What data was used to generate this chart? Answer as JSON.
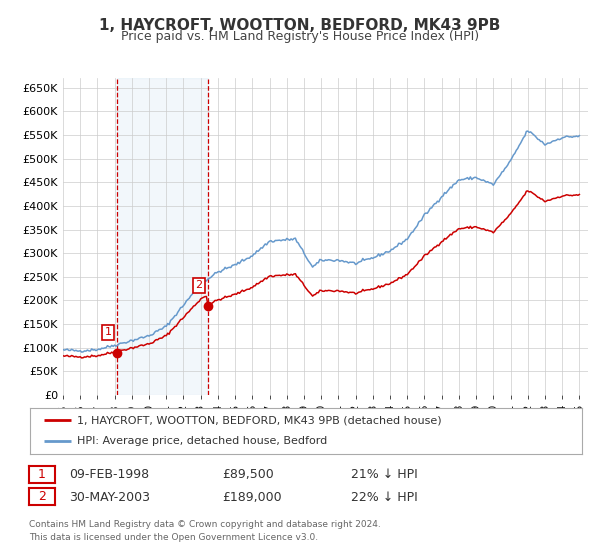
{
  "title": "1, HAYCROFT, WOOTTON, BEDFORD, MK43 9PB",
  "subtitle": "Price paid vs. HM Land Registry's House Price Index (HPI)",
  "legend_label_red": "1, HAYCROFT, WOOTTON, BEDFORD, MK43 9PB (detached house)",
  "legend_label_blue": "HPI: Average price, detached house, Bedford",
  "sale1_date": "09-FEB-1998",
  "sale1_price": "£89,500",
  "sale1_hpi": "21% ↓ HPI",
  "sale1_year": 1998.12,
  "sale1_value": 89500,
  "sale2_date": "30-MAY-2003",
  "sale2_price": "£189,000",
  "sale2_hpi": "22% ↓ HPI",
  "sale2_year": 2003.41,
  "sale2_value": 189000,
  "color_red": "#cc0000",
  "color_blue": "#6699cc",
  "color_vline": "#cc0000",
  "color_shade": "#cce0f0",
  "ylim": [
    0,
    670000
  ],
  "yticks": [
    0,
    50000,
    100000,
    150000,
    200000,
    250000,
    300000,
    350000,
    400000,
    450000,
    500000,
    550000,
    600000,
    650000
  ],
  "xlim_start": 1995.0,
  "xlim_end": 2025.5,
  "footer_line1": "Contains HM Land Registry data © Crown copyright and database right 2024.",
  "footer_line2": "This data is licensed under the Open Government Licence v3.0.",
  "background_color": "#ffffff",
  "grid_color": "#cccccc",
  "hpi_anchors_x": [
    1995.0,
    1996.0,
    1997.0,
    1998.0,
    1999.0,
    2000.0,
    2001.0,
    2002.0,
    2003.0,
    2004.0,
    2005.0,
    2006.0,
    2007.0,
    2008.5,
    2009.5,
    2010.0,
    2011.0,
    2012.0,
    2013.0,
    2014.0,
    2015.0,
    2016.0,
    2017.0,
    2018.0,
    2019.0,
    2020.0,
    2021.0,
    2022.0,
    2023.0,
    2024.0,
    2025.0
  ],
  "hpi_anchors_y": [
    95000,
    93000,
    96000,
    105000,
    115000,
    125000,
    145000,
    190000,
    235000,
    260000,
    275000,
    295000,
    325000,
    330000,
    270000,
    285000,
    285000,
    278000,
    290000,
    305000,
    330000,
    380000,
    420000,
    455000,
    460000,
    445000,
    495000,
    560000,
    530000,
    545000,
    548000
  ]
}
